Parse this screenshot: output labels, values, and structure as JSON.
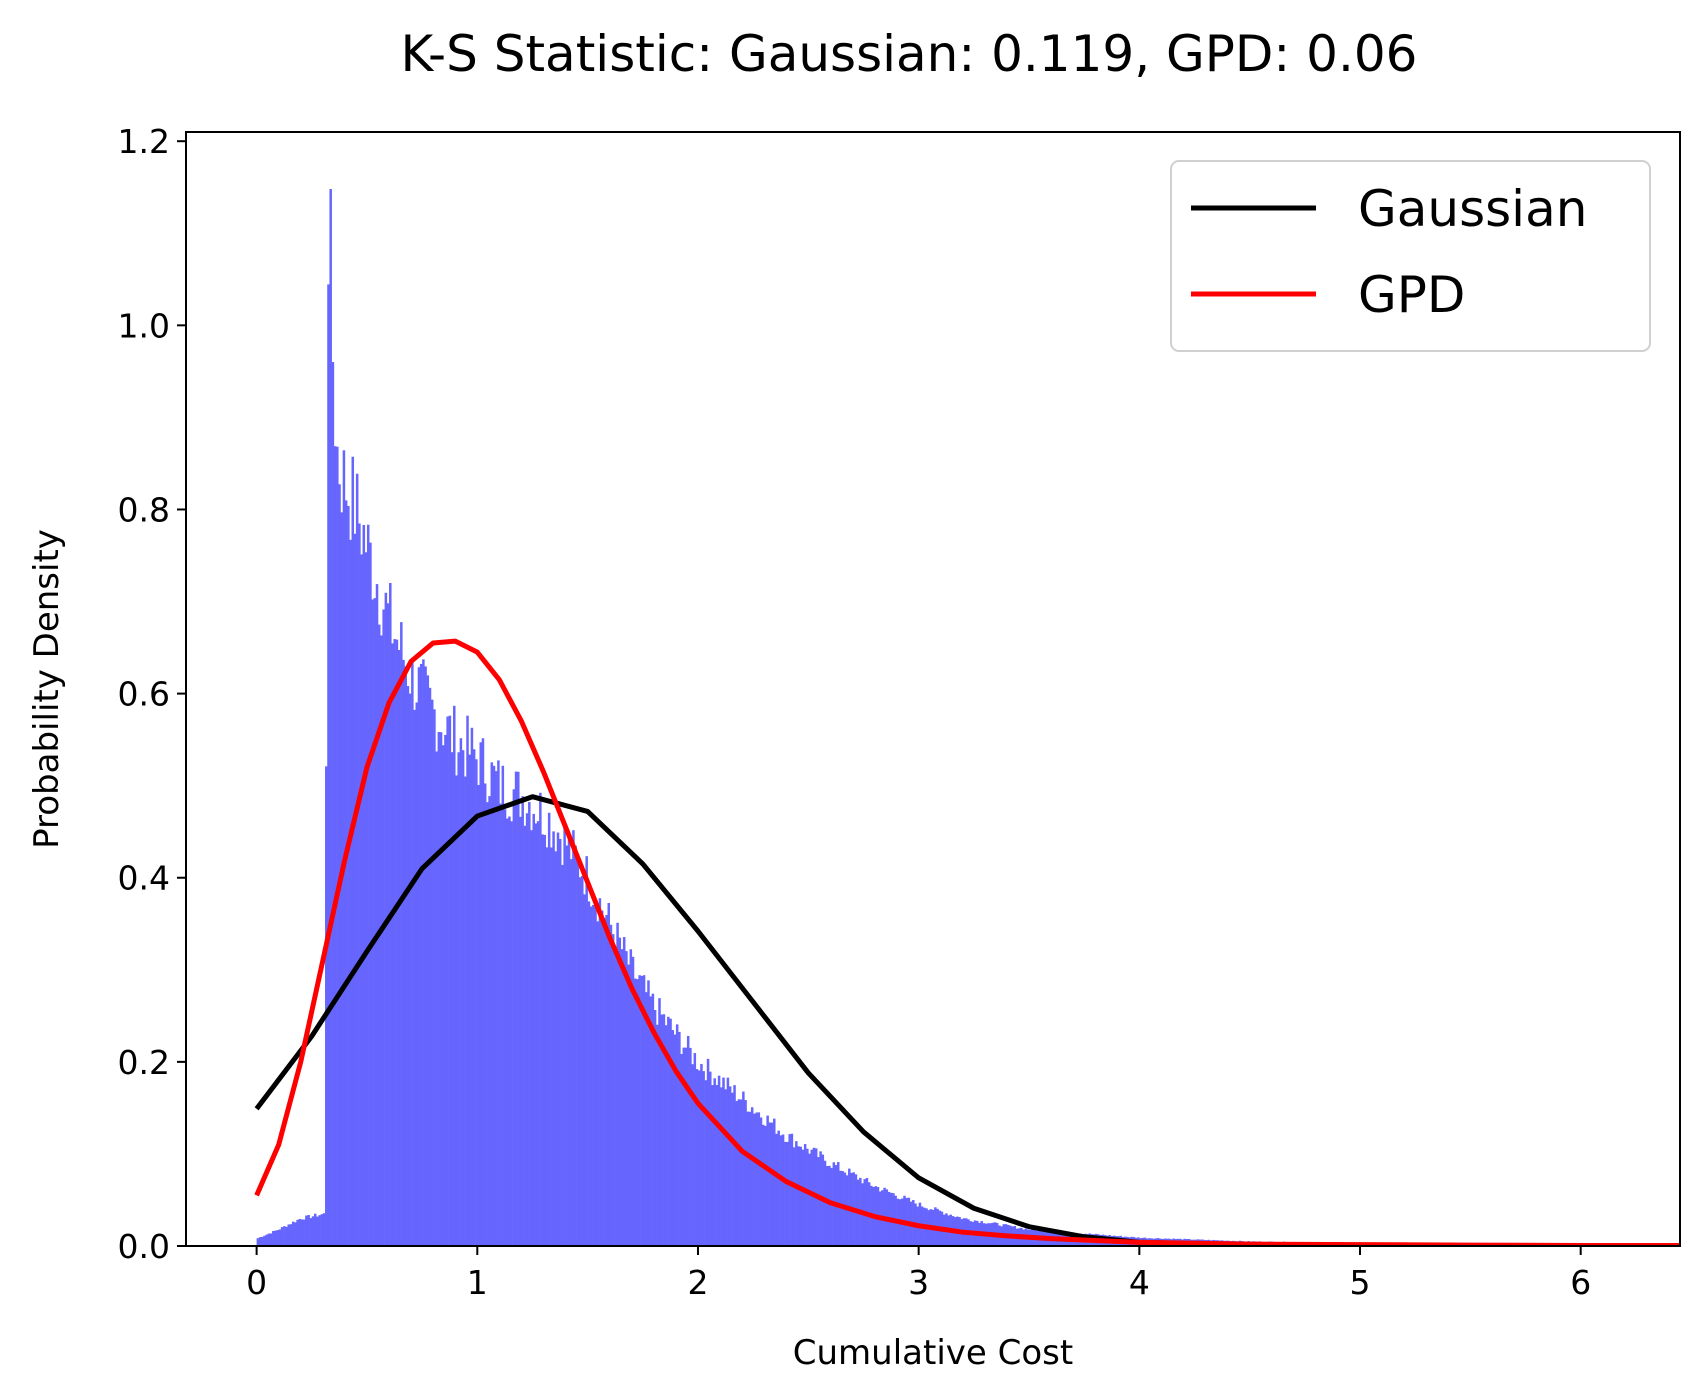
{
  "chart_data": {
    "type": "histogram",
    "title": "K-S Statistic: Gaussian: 0.119, GPD: 0.06",
    "xlabel": "Cumulative Cost",
    "ylabel": "Probability Density",
    "xlim": [
      -0.32,
      6.45
    ],
    "ylim": [
      0,
      1.21
    ],
    "xticks": [
      0,
      1,
      2,
      3,
      4,
      5,
      6
    ],
    "yticks": [
      0.0,
      0.2,
      0.4,
      0.6,
      0.8,
      1.0,
      1.2
    ],
    "xtick_labels": [
      "0",
      "1",
      "2",
      "3",
      "4",
      "5",
      "6"
    ],
    "ytick_labels": [
      "0.0",
      "0.2",
      "0.4",
      "0.6",
      "0.8",
      "1.0",
      "1.2"
    ],
    "legend_position": "top-right",
    "histogram": {
      "color": "#6666ff",
      "bin_range": [
        0.0,
        6.45
      ],
      "bins": 645,
      "profile_x": [
        0.0,
        0.1,
        0.2,
        0.31,
        0.32,
        0.33,
        0.34,
        0.36,
        0.38,
        0.4,
        0.45,
        0.5,
        0.6,
        0.7,
        0.8,
        0.9,
        1.0,
        1.1,
        1.2,
        1.3,
        1.4,
        1.5,
        1.6,
        1.7,
        1.8,
        1.9,
        2.0,
        2.2,
        2.4,
        2.6,
        2.8,
        3.0,
        3.2,
        3.5,
        4.0,
        4.5,
        5.0,
        5.5,
        6.0,
        6.45
      ],
      "profile_y": [
        0.008,
        0.018,
        0.03,
        0.035,
        1.04,
        1.15,
        1.0,
        0.87,
        0.84,
        0.83,
        0.8,
        0.76,
        0.68,
        0.62,
        0.58,
        0.55,
        0.53,
        0.5,
        0.49,
        0.47,
        0.44,
        0.4,
        0.35,
        0.3,
        0.26,
        0.23,
        0.2,
        0.16,
        0.12,
        0.09,
        0.065,
        0.045,
        0.03,
        0.018,
        0.009,
        0.005,
        0.003,
        0.002,
        0.001,
        0.001
      ]
    },
    "series": [
      {
        "name": "Gaussian",
        "color": "#000000",
        "x": [
          0.0,
          0.25,
          0.5,
          0.75,
          1.0,
          1.25,
          1.5,
          1.75,
          2.0,
          2.25,
          2.5,
          2.75,
          3.0,
          3.25,
          3.5,
          3.75,
          4.0,
          4.5,
          5.0,
          5.5,
          6.0,
          6.45
        ],
        "y": [
          0.149,
          0.228,
          0.32,
          0.41,
          0.467,
          0.488,
          0.472,
          0.415,
          0.342,
          0.265,
          0.188,
          0.124,
          0.074,
          0.041,
          0.021,
          0.01,
          0.004,
          0.001,
          0.0,
          0.0,
          0.0,
          0.0
        ]
      },
      {
        "name": "GPD",
        "color": "#ff0000",
        "x": [
          0.0,
          0.1,
          0.2,
          0.3,
          0.4,
          0.5,
          0.6,
          0.7,
          0.8,
          0.9,
          1.0,
          1.1,
          1.2,
          1.3,
          1.4,
          1.5,
          1.6,
          1.7,
          1.8,
          1.9,
          2.0,
          2.2,
          2.4,
          2.6,
          2.8,
          3.0,
          3.2,
          3.4,
          3.6,
          3.8,
          4.0,
          4.5,
          5.0,
          5.5,
          6.0,
          6.45
        ],
        "y": [
          0.055,
          0.11,
          0.2,
          0.31,
          0.42,
          0.52,
          0.59,
          0.635,
          0.655,
          0.657,
          0.645,
          0.615,
          0.57,
          0.515,
          0.455,
          0.395,
          0.335,
          0.28,
          0.232,
          0.19,
          0.155,
          0.103,
          0.07,
          0.047,
          0.032,
          0.022,
          0.015,
          0.011,
          0.008,
          0.006,
          0.004,
          0.002,
          0.0015,
          0.001,
          0.0005,
          0.0005
        ]
      }
    ]
  }
}
